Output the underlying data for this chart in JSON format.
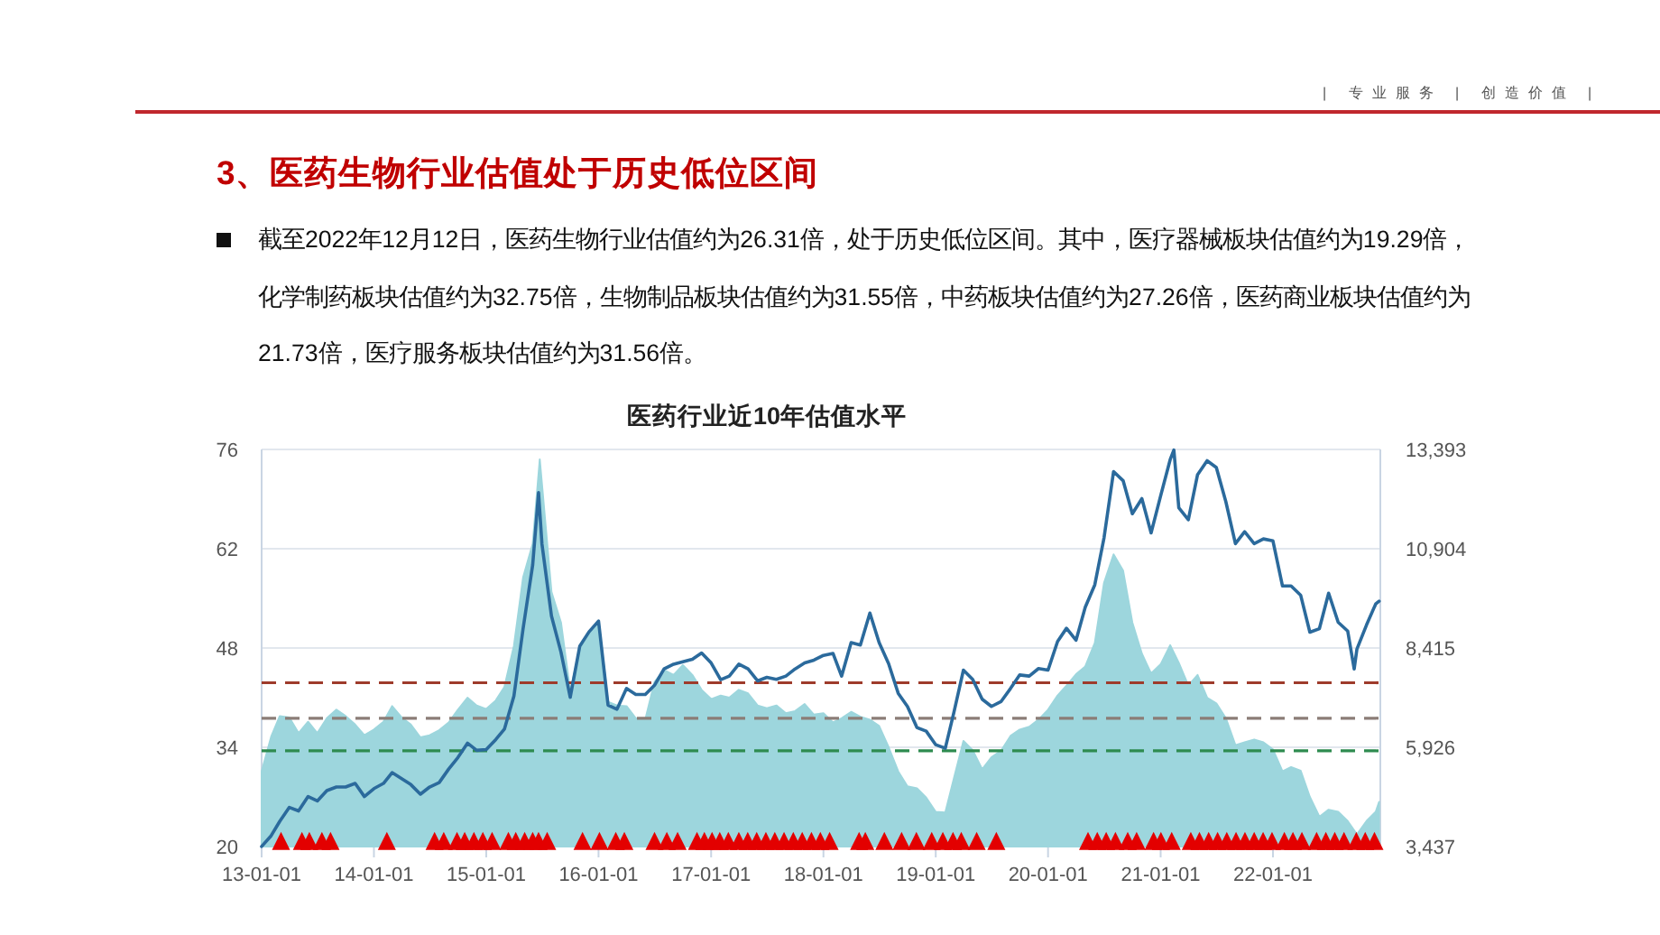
{
  "chart_data": {
    "type": "line",
    "title": "医药行业近10年估值水平",
    "annotations": [
      "3、医药生物行业估值处于历史低位区间",
      "截至2022年12月12日，医药生物行业估值约为26.31倍，处于历史低位区间。其中，医疗器械板块估值约为19.29倍，化学制药板块估值约为32.75倍，生物制品板块估值约为31.55倍，中药板块估值约为27.26倍，医药商业板块估值约为21.73倍，医疗服务板块估值约为31.56倍。",
      "| 专业服务 | 创造价值 |"
    ],
    "xlim": [
      "2013-01-01",
      "2022-12-16"
    ],
    "xticks": [
      {
        "value": "2013-01-01",
        "label": "13-01-01"
      },
      {
        "value": "2014-01-01",
        "label": "14-01-01"
      },
      {
        "value": "2015-01-01",
        "label": "15-01-01"
      },
      {
        "value": "2016-01-01",
        "label": "16-01-01"
      },
      {
        "value": "2017-01-01",
        "label": "17-01-01"
      },
      {
        "value": "2018-01-01",
        "label": "18-01-01"
      },
      {
        "value": "2019-01-01",
        "label": "19-01-01"
      },
      {
        "value": "2020-01-01",
        "label": "20-01-01"
      },
      {
        "value": "2021-01-01",
        "label": "21-01-01"
      },
      {
        "value": "2022-01-01",
        "label": "22-01-01"
      }
    ],
    "ylim": [
      20,
      76
    ],
    "yticks": [
      20,
      34,
      48,
      62,
      76
    ],
    "y2lim": [
      3437,
      13393
    ],
    "y2ticks": [
      {
        "value": 3437,
        "label": "3,437"
      },
      {
        "value": 5926,
        "label": "5,926"
      },
      {
        "value": 8415,
        "label": "8,415"
      },
      {
        "value": 10904,
        "label": "10,904"
      },
      {
        "value": 13393,
        "label": "13,393"
      }
    ],
    "grid": "y",
    "ref_lines": [
      {
        "axis": "y",
        "value": 43.1,
        "color": "#9e3b2b",
        "line_style": "dashed"
      },
      {
        "axis": "y",
        "value": 38.1,
        "color": "#8b7d77",
        "line_style": "dashed"
      },
      {
        "axis": "y",
        "value": 33.5,
        "color": "#2e8b4f",
        "line_style": "dashed"
      }
    ],
    "series": [
      {
        "type": "area",
        "color": "#9dd6dd",
        "x": [
          "2013-01",
          "2013-02",
          "2013-03",
          "2013-04",
          "2013-05",
          "2013-06",
          "2013-07",
          "2013-08",
          "2013-09",
          "2013-10",
          "2013-11",
          "2013-12",
          "2014-01",
          "2014-02",
          "2014-03",
          "2014-04",
          "2014-05",
          "2014-06",
          "2014-07",
          "2014-08",
          "2014-09",
          "2014-10",
          "2014-11",
          "2014-12",
          "2015-01",
          "2015-02",
          "2015-03",
          "2015-04",
          "2015-05",
          "2015-06",
          "2015-06-24",
          "2015-07",
          "2015-08",
          "2015-09",
          "2015-10",
          "2015-11",
          "2015-12",
          "2016-01",
          "2016-02",
          "2016-03",
          "2016-04",
          "2016-05",
          "2016-06",
          "2016-07",
          "2016-08",
          "2016-09",
          "2016-10",
          "2016-11",
          "2016-12",
          "2017-01",
          "2017-02",
          "2017-03",
          "2017-04",
          "2017-05",
          "2017-06",
          "2017-07",
          "2017-08",
          "2017-09",
          "2017-10",
          "2017-11",
          "2017-12",
          "2018-01",
          "2018-02",
          "2018-03",
          "2018-04",
          "2018-05",
          "2018-06",
          "2018-07",
          "2018-08",
          "2018-09",
          "2018-10",
          "2018-11",
          "2018-12",
          "2019-01",
          "2019-02",
          "2019-03",
          "2019-04",
          "2019-05",
          "2019-06",
          "2019-07",
          "2019-08",
          "2019-09",
          "2019-10",
          "2019-11",
          "2019-12",
          "2020-01",
          "2020-02",
          "2020-03",
          "2020-04",
          "2020-05",
          "2020-06",
          "2020-07",
          "2020-08",
          "2020-09",
          "2020-10",
          "2020-11",
          "2020-12",
          "2021-01",
          "2021-02",
          "2021-03",
          "2021-04",
          "2021-05",
          "2021-06",
          "2021-07",
          "2021-08",
          "2021-09",
          "2021-10",
          "2021-11",
          "2021-12",
          "2022-01",
          "2022-02",
          "2022-03",
          "2022-04",
          "2022-05",
          "2022-06",
          "2022-07",
          "2022-08",
          "2022-09",
          "2022-10",
          "2022-11",
          "2022-12",
          "2022-12-12"
        ],
        "values": [
          30.6,
          35.5,
          38.4,
          38.2,
          36.0,
          37.6,
          36.0,
          38.1,
          39.3,
          38.4,
          37.2,
          35.7,
          36.5,
          37.6,
          39.8,
          38.2,
          37.2,
          35.4,
          35.7,
          36.4,
          37.5,
          39.3,
          41.0,
          39.9,
          39.4,
          40.6,
          42.5,
          48.3,
          58.0,
          62.7,
          74.6,
          71.2,
          55.9,
          51.6,
          41.9,
          47.8,
          50.1,
          51.8,
          40.4,
          39.9,
          39.8,
          38.1,
          37.9,
          43.2,
          44.9,
          44.2,
          45.6,
          44.2,
          42.1,
          40.8,
          41.3,
          41.0,
          42.1,
          41.6,
          39.9,
          39.5,
          39.9,
          38.8,
          39.1,
          40.1,
          38.6,
          38.8,
          37.5,
          38.1,
          39.0,
          38.3,
          37.9,
          37.0,
          34.0,
          30.6,
          28.5,
          28.2,
          26.9,
          24.9,
          24.8,
          29.6,
          34.9,
          33.6,
          30.9,
          32.6,
          33.5,
          35.6,
          36.5,
          36.9,
          37.9,
          39.3,
          41.3,
          42.7,
          44.3,
          45.4,
          48.7,
          57.2,
          61.2,
          58.9,
          51.6,
          47.2,
          44.4,
          45.7,
          48.4,
          45.9,
          42.7,
          44.2,
          41.0,
          40.2,
          38.1,
          34.3,
          34.7,
          35.1,
          34.7,
          33.7,
          30.6,
          31.2,
          30.7,
          27.0,
          24.2,
          25.2,
          24.9,
          23.6,
          21.7,
          23.6,
          24.9,
          26.3
        ]
      },
      {
        "color": "#2b6a9c",
        "axis": "y2",
        "x": [
          "2013-01",
          "2013-02",
          "2013-03",
          "2013-04",
          "2013-05",
          "2013-06",
          "2013-07",
          "2013-08",
          "2013-09",
          "2013-10",
          "2013-11",
          "2013-12",
          "2014-01",
          "2014-02",
          "2014-03",
          "2014-04",
          "2014-05",
          "2014-06",
          "2014-07",
          "2014-08",
          "2014-09",
          "2014-10",
          "2014-11",
          "2014-12",
          "2015-01",
          "2015-02",
          "2015-03",
          "2015-04",
          "2015-05",
          "2015-06",
          "2015-06-20",
          "2015-07",
          "2015-08",
          "2015-09",
          "2015-10",
          "2015-11",
          "2015-12",
          "2016-01",
          "2016-02",
          "2016-03",
          "2016-04",
          "2016-05",
          "2016-06",
          "2016-07",
          "2016-08",
          "2016-09",
          "2016-10",
          "2016-11",
          "2016-12",
          "2017-01",
          "2017-02",
          "2017-03",
          "2017-04",
          "2017-05",
          "2017-06",
          "2017-07",
          "2017-08",
          "2017-09",
          "2017-10",
          "2017-11",
          "2017-12",
          "2018-01",
          "2018-02",
          "2018-03",
          "2018-04",
          "2018-05",
          "2018-06",
          "2018-07",
          "2018-08",
          "2018-09",
          "2018-10",
          "2018-11",
          "2018-12",
          "2019-01",
          "2019-02",
          "2019-03",
          "2019-04",
          "2019-05",
          "2019-06",
          "2019-07",
          "2019-08",
          "2019-09",
          "2019-10",
          "2019-11",
          "2019-12",
          "2020-01",
          "2020-02",
          "2020-03",
          "2020-04",
          "2020-05",
          "2020-06",
          "2020-07",
          "2020-08",
          "2020-09",
          "2020-10",
          "2020-11",
          "2020-12",
          "2021-01",
          "2021-02",
          "2021-02-13",
          "2021-03",
          "2021-04",
          "2021-05",
          "2021-06",
          "2021-07",
          "2021-08",
          "2021-09",
          "2021-10",
          "2021-11",
          "2021-12",
          "2022-01",
          "2022-02",
          "2022-03",
          "2022-04",
          "2022-05",
          "2022-06",
          "2022-07",
          "2022-08",
          "2022-09",
          "2022-09-22",
          "2022-10",
          "2022-11",
          "2022-12",
          "2022-12-12"
        ],
        "values": [
          3440,
          3710,
          4070,
          4420,
          4330,
          4690,
          4580,
          4840,
          4930,
          4930,
          5020,
          4690,
          4890,
          5020,
          5290,
          5140,
          4990,
          4750,
          4930,
          5040,
          5380,
          5670,
          6030,
          5850,
          5870,
          6120,
          6380,
          7210,
          8910,
          10500,
          12310,
          11030,
          9220,
          8310,
          7180,
          8460,
          8820,
          9090,
          6980,
          6880,
          7400,
          7250,
          7250,
          7480,
          7890,
          8010,
          8070,
          8130,
          8290,
          8040,
          7620,
          7710,
          8010,
          7890,
          7590,
          7680,
          7630,
          7710,
          7890,
          8040,
          8110,
          8230,
          8280,
          7710,
          8550,
          8490,
          9290,
          8550,
          8020,
          7280,
          6950,
          6420,
          6330,
          5990,
          5900,
          6800,
          7860,
          7630,
          7130,
          6950,
          7070,
          7400,
          7740,
          7710,
          7900,
          7860,
          8580,
          8910,
          8610,
          9440,
          10000,
          11180,
          12840,
          12610,
          11780,
          12160,
          11300,
          12230,
          13140,
          13380,
          11930,
          11630,
          12760,
          13110,
          12940,
          12080,
          11030,
          11330,
          11030,
          11150,
          11100,
          9970,
          9970,
          9740,
          8810,
          8900,
          9790,
          9060,
          8840,
          7890,
          8390,
          8990,
          9520,
          9590
        ]
      },
      {
        "type": "scatter",
        "color": "#e30000",
        "marker": "triangle",
        "x": [
          "2013-03-05",
          "2013-05-12",
          "2013-06-05",
          "2013-07-16",
          "2013-08-13",
          "2014-02-12",
          "2014-07-17",
          "2014-08-16",
          "2014-09-28",
          "2014-10-23",
          "2014-11-22",
          "2014-12-21",
          "2015-01-20",
          "2015-03-14",
          "2015-04-07",
          "2015-05-06",
          "2015-06-01",
          "2015-06-20",
          "2015-07-18",
          "2015-11-10",
          "2016-01-04",
          "2016-02-26",
          "2016-03-25",
          "2016-07-01",
          "2016-08-10",
          "2016-09-14",
          "2016-11-16",
          "2016-12-10",
          "2017-01-04",
          "2017-01-29",
          "2017-02-26",
          "2017-04-01",
          "2017-04-30",
          "2017-05-29",
          "2017-06-28",
          "2017-07-27",
          "2017-08-26",
          "2017-09-25",
          "2017-10-24",
          "2017-11-23",
          "2017-12-22",
          "2018-01-21",
          "2018-04-27",
          "2018-05-17",
          "2018-07-18",
          "2018-09-12",
          "2018-10-30",
          "2018-12-19",
          "2019-01-24",
          "2019-02-26",
          "2019-03-25",
          "2019-05-14",
          "2019-07-17",
          "2020-05-10",
          "2020-06-09",
          "2020-07-08",
          "2020-08-07",
          "2020-09-16",
          "2020-10-15",
          "2020-12-09",
          "2021-01-02",
          "2021-02-06",
          "2021-04-09",
          "2021-05-07",
          "2021-06-06",
          "2021-07-05",
          "2021-08-04",
          "2021-09-03",
          "2021-10-02",
          "2021-11-01",
          "2021-11-30",
          "2021-12-29",
          "2022-02-07",
          "2022-03-07",
          "2022-04-05",
          "2022-05-23",
          "2022-06-22",
          "2022-07-21",
          "2022-08-20",
          "2022-09-29",
          "2022-10-28",
          "2022-11-27"
        ],
        "values": [
          20.8,
          20.8,
          20.8,
          20.8,
          20.8,
          20.8,
          20.8,
          20.8,
          20.8,
          20.8,
          20.8,
          20.8,
          20.8,
          20.8,
          20.8,
          20.8,
          20.8,
          20.8,
          20.8,
          20.8,
          20.8,
          20.8,
          20.8,
          20.8,
          20.8,
          20.8,
          20.8,
          20.8,
          20.8,
          20.8,
          20.8,
          20.8,
          20.8,
          20.8,
          20.8,
          20.8,
          20.8,
          20.8,
          20.8,
          20.8,
          20.8,
          20.8,
          20.8,
          20.8,
          20.8,
          20.8,
          20.8,
          20.8,
          20.8,
          20.8,
          20.8,
          20.8,
          20.8,
          20.8,
          20.8,
          20.8,
          20.8,
          20.8,
          20.8,
          20.8,
          20.8,
          20.8,
          20.8,
          20.8,
          20.8,
          20.8,
          20.8,
          20.8,
          20.8,
          20.8,
          20.8,
          20.8,
          20.8,
          20.8,
          20.8,
          20.8,
          20.8,
          20.8,
          20.8,
          20.8,
          20.8,
          20.8
        ]
      }
    ]
  }
}
